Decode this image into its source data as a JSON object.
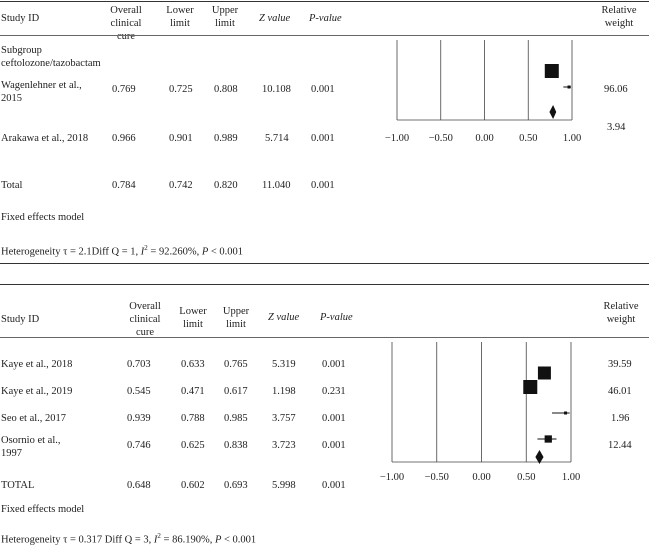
{
  "panels": [
    {
      "header": {
        "study_id": "Study ID",
        "overall": [
          "Overall",
          "clinical",
          "cure"
        ],
        "lower": [
          "Lower",
          "limit"
        ],
        "upper": [
          "Upper",
          "limit"
        ],
        "z": "Z value",
        "p": "P-value",
        "weight": [
          "Relative",
          "weight"
        ]
      },
      "subgroup": [
        "Subgroup",
        "ceftolozone/tazobactam"
      ],
      "rows": [
        {
          "study": [
            "Wagenlehner et al.,",
            "2015"
          ],
          "overall": "0.769",
          "lower": "0.725",
          "upper": "0.808",
          "z": "10.108",
          "p": "0.001",
          "weight": "96.06"
        },
        {
          "study": [
            "Arakawa et al., 2018"
          ],
          "overall": "0.966",
          "lower": "0.901",
          "upper": "0.989",
          "z": "5.714",
          "p": "0.001",
          "weight": "3.94"
        }
      ],
      "total": {
        "label": "Total",
        "overall": "0.784",
        "lower": "0.742",
        "upper": "0.820",
        "z": "11.040",
        "p": "0.001"
      },
      "model": "Fixed effects model",
      "heterogeneity": [
        "Heterogeneity τ = 2.1Diff Q = 1, ",
        "I",
        "2",
        " = 92.260%, ",
        "P",
        " < 0.001"
      ]
    },
    {
      "header": {
        "study_id": "Study ID",
        "overall": [
          "Overall",
          "clinical",
          "cure"
        ],
        "lower": [
          "Lower",
          "limit"
        ],
        "upper": [
          "Upper",
          "limit"
        ],
        "z": "Z value",
        "p": "P-value",
        "weight": [
          "Relative",
          "weight"
        ]
      },
      "rows": [
        {
          "study": [
            "Kaye et al., 2018"
          ],
          "overall": "0.703",
          "lower": "0.633",
          "upper": "0.765",
          "z": "5.319",
          "p": "0.001",
          "weight": "39.59"
        },
        {
          "study": [
            "Kaye et al., 2019"
          ],
          "overall": "0.545",
          "lower": "0.471",
          "upper": "0.617",
          "z": "1.198",
          "p": "0.231",
          "weight": "46.01"
        },
        {
          "study": [
            "Seo et al., 2017"
          ],
          "overall": "0.939",
          "lower": "0.788",
          "upper": "0.985",
          "z": "3.757",
          "p": "0.001",
          "weight": "1.96"
        },
        {
          "study": [
            "Osornio et al.,",
            "1997"
          ],
          "overall": "0.746",
          "lower": "0.625",
          "upper": "0.838",
          "z": "3.723",
          "p": "0.001",
          "weight": "12.44"
        }
      ],
      "total": {
        "label": "TOTAL",
        "overall": "0.648",
        "lower": "0.602",
        "upper": "0.693",
        "z": "5.998",
        "p": "0.001"
      },
      "model": "Fixed effects model",
      "heterogeneity": [
        "Heterogeneity τ = 0.317 Diff Q = 3, ",
        "I",
        "2",
        " = 86.190%, ",
        "P",
        " < 0.001"
      ]
    }
  ],
  "chart_data": [
    {
      "type": "forest",
      "x_ticks": [
        "−1.00",
        "−0.50",
        "0.00",
        "0.50",
        "1.00"
      ],
      "xlim": [
        -1.0,
        1.0
      ],
      "studies": [
        {
          "point": 0.769,
          "lower": 0.725,
          "upper": 0.808,
          "weight": 96.06
        },
        {
          "point": 0.966,
          "lower": 0.901,
          "upper": 0.989,
          "weight": 3.94
        }
      ],
      "pooled": {
        "point": 0.784,
        "lower": 0.742,
        "upper": 0.82
      }
    },
    {
      "type": "forest",
      "x_ticks": [
        "−1.00",
        "−0.50",
        "0.00",
        "0.50",
        "1.00"
      ],
      "xlim": [
        -1.0,
        1.0
      ],
      "studies": [
        {
          "point": 0.703,
          "lower": 0.633,
          "upper": 0.765,
          "weight": 39.59
        },
        {
          "point": 0.545,
          "lower": 0.471,
          "upper": 0.617,
          "weight": 46.01
        },
        {
          "point": 0.939,
          "lower": 0.788,
          "upper": 0.985,
          "weight": 1.96
        },
        {
          "point": 0.746,
          "lower": 0.625,
          "upper": 0.838,
          "weight": 12.44
        }
      ],
      "pooled": {
        "point": 0.648,
        "lower": 0.602,
        "upper": 0.693
      }
    }
  ]
}
